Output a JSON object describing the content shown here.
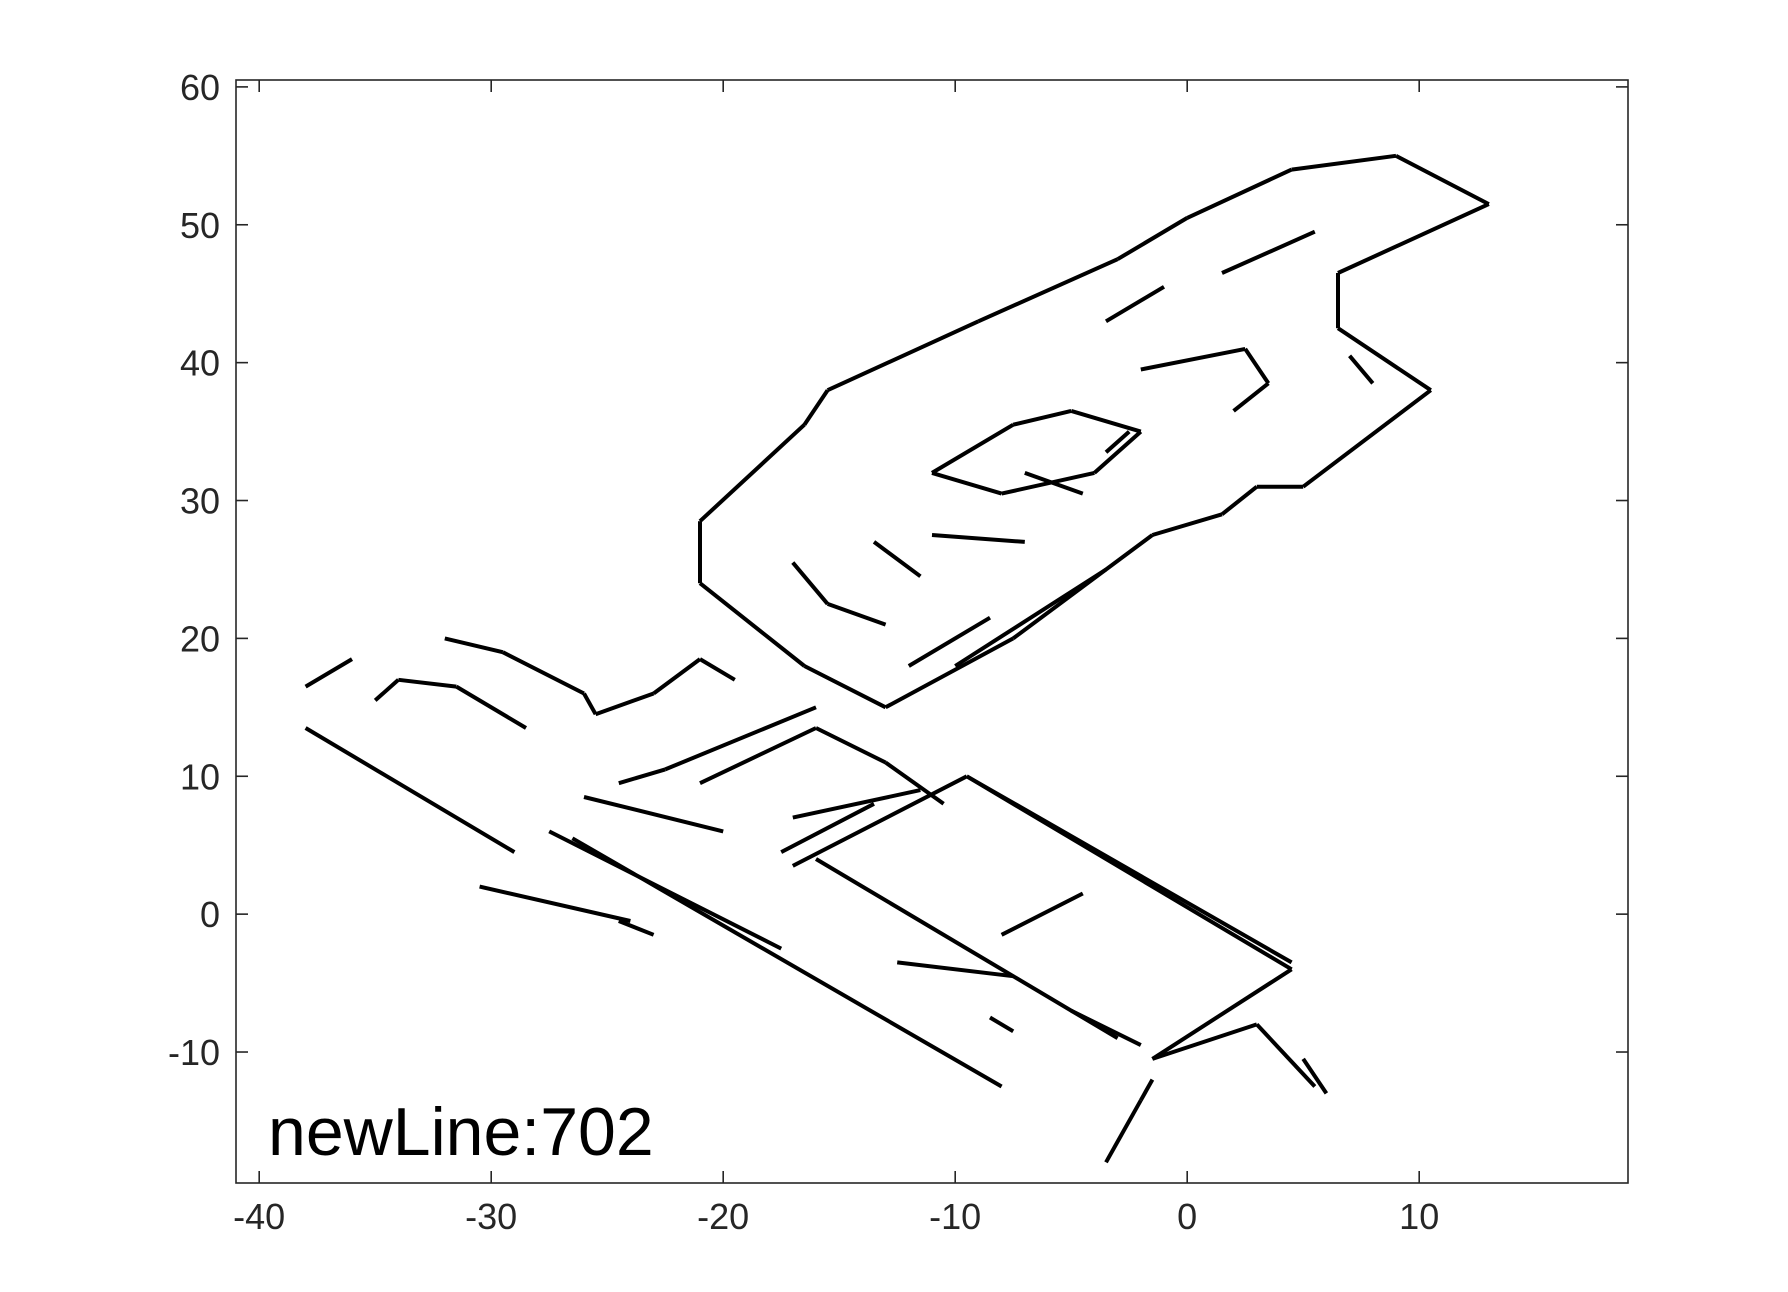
{
  "chart_data": {
    "type": "line",
    "title": "",
    "xlabel": "",
    "ylabel": "",
    "xlim": [
      -41,
      19
    ],
    "ylim": [
      -19.5,
      60.5
    ],
    "grid": false,
    "xticks": [
      -40,
      -30,
      -20,
      -10,
      0,
      10
    ],
    "yticks": [
      -10,
      0,
      10,
      20,
      30,
      40,
      50,
      60
    ],
    "xtick_labels": [
      "-40",
      "-30",
      "-20",
      "-10",
      "0",
      "10"
    ],
    "ytick_labels": [
      "-10",
      "0",
      "10",
      "20",
      "30",
      "40",
      "50",
      "60"
    ],
    "annotation": "newLine:702",
    "line_color": "#000000",
    "segments": [
      [
        [
          -38.0,
          13.5
        ],
        [
          -29.0,
          4.5
        ]
      ],
      [
        [
          -27.5,
          6.0
        ],
        [
          -17.5,
          -2.5
        ]
      ],
      [
        [
          -26.5,
          5.5
        ],
        [
          -8.0,
          -12.5
        ]
      ],
      [
        [
          -30.5,
          2.0
        ],
        [
          -24.0,
          -0.5
        ]
      ],
      [
        [
          -24.5,
          -0.5
        ],
        [
          -23.0,
          -1.5
        ]
      ],
      [
        [
          -38.0,
          16.5
        ],
        [
          -36.0,
          18.5
        ]
      ],
      [
        [
          -35.0,
          15.5
        ],
        [
          -34.0,
          17.0
        ]
      ],
      [
        [
          -34.0,
          17.0
        ],
        [
          -31.5,
          16.5
        ]
      ],
      [
        [
          -31.5,
          16.5
        ],
        [
          -28.5,
          13.5
        ]
      ],
      [
        [
          -32.0,
          20.0
        ],
        [
          -29.5,
          19.0
        ]
      ],
      [
        [
          -29.5,
          19.0
        ],
        [
          -26.0,
          16.0
        ]
      ],
      [
        [
          -26.0,
          16.0
        ],
        [
          -25.5,
          14.5
        ]
      ],
      [
        [
          -25.5,
          14.5
        ],
        [
          -23.0,
          16.0
        ]
      ],
      [
        [
          -23.0,
          16.0
        ],
        [
          -21.0,
          18.5
        ]
      ],
      [
        [
          -21.0,
          18.5
        ],
        [
          -19.5,
          17.0
        ]
      ],
      [
        [
          -26.0,
          8.5
        ],
        [
          -20.0,
          6.0
        ]
      ],
      [
        [
          -24.5,
          9.5
        ],
        [
          -22.5,
          10.5
        ]
      ],
      [
        [
          -22.5,
          10.5
        ],
        [
          -16.0,
          15.0
        ]
      ],
      [
        [
          -21.0,
          9.5
        ],
        [
          -16.0,
          13.5
        ]
      ],
      [
        [
          -16.0,
          13.5
        ],
        [
          -13.0,
          11.0
        ]
      ],
      [
        [
          -13.0,
          11.0
        ],
        [
          -10.5,
          8.0
        ]
      ],
      [
        [
          -17.0,
          7.0
        ],
        [
          -11.5,
          9.0
        ]
      ],
      [
        [
          -17.5,
          4.5
        ],
        [
          -13.5,
          8.0
        ]
      ],
      [
        [
          -17.0,
          3.5
        ],
        [
          -9.5,
          10.0
        ]
      ],
      [
        [
          -9.5,
          10.0
        ],
        [
          4.5,
          -4.0
        ]
      ],
      [
        [
          4.5,
          -4.0
        ],
        [
          -1.5,
          -10.5
        ]
      ],
      [
        [
          -1.5,
          -10.5
        ],
        [
          3.0,
          -8.0
        ]
      ],
      [
        [
          3.0,
          -8.0
        ],
        [
          5.5,
          -12.5
        ]
      ],
      [
        [
          -3.5,
          -18.0
        ],
        [
          -2.0,
          -13.5
        ]
      ],
      [
        [
          -2.0,
          -13.5
        ],
        [
          -1.5,
          -12.0
        ]
      ],
      [
        [
          -9.5,
          10.0
        ],
        [
          4.5,
          -3.5
        ]
      ],
      [
        [
          -16.0,
          4.0
        ],
        [
          -3.0,
          -9.0
        ]
      ],
      [
        [
          -12.5,
          -3.5
        ],
        [
          -7.5,
          -4.5
        ]
      ],
      [
        [
          -8.0,
          -1.5
        ],
        [
          -4.5,
          1.5
        ]
      ],
      [
        [
          -21.0,
          24.0
        ],
        [
          -16.5,
          18.0
        ]
      ],
      [
        [
          -16.5,
          18.0
        ],
        [
          -13.0,
          15.0
        ]
      ],
      [
        [
          -13.0,
          15.0
        ],
        [
          -7.5,
          20.0
        ]
      ],
      [
        [
          -7.5,
          20.0
        ],
        [
          -1.5,
          27.5
        ]
      ],
      [
        [
          -1.5,
          27.5
        ],
        [
          1.5,
          29.0
        ]
      ],
      [
        [
          1.5,
          29.0
        ],
        [
          3.0,
          31.0
        ]
      ],
      [
        [
          3.0,
          31.0
        ],
        [
          5.0,
          31.0
        ]
      ],
      [
        [
          5.0,
          31.0
        ],
        [
          10.5,
          38.0
        ]
      ],
      [
        [
          10.5,
          38.0
        ],
        [
          6.5,
          42.5
        ]
      ],
      [
        [
          6.5,
          42.5
        ],
        [
          6.5,
          46.5
        ]
      ],
      [
        [
          6.5,
          46.5
        ],
        [
          13.0,
          51.5
        ]
      ],
      [
        [
          13.0,
          51.5
        ],
        [
          9.0,
          55.0
        ]
      ],
      [
        [
          9.0,
          55.0
        ],
        [
          4.5,
          54.0
        ]
      ],
      [
        [
          4.5,
          54.0
        ],
        [
          0.0,
          50.5
        ]
      ],
      [
        [
          0.0,
          50.5
        ],
        [
          -3.0,
          47.5
        ]
      ],
      [
        [
          -3.0,
          47.5
        ],
        [
          -9.0,
          43.0
        ]
      ],
      [
        [
          -9.0,
          43.0
        ],
        [
          -15.5,
          38.0
        ]
      ],
      [
        [
          -15.5,
          38.0
        ],
        [
          -16.5,
          35.5
        ]
      ],
      [
        [
          -16.5,
          35.5
        ],
        [
          -21.0,
          28.5
        ]
      ],
      [
        [
          -21.0,
          28.5
        ],
        [
          -21.0,
          24.0
        ]
      ],
      [
        [
          -11.0,
          32.0
        ],
        [
          -7.5,
          35.5
        ]
      ],
      [
        [
          -7.5,
          35.5
        ],
        [
          -5.0,
          36.5
        ]
      ],
      [
        [
          -5.0,
          36.5
        ],
        [
          -2.0,
          35.0
        ]
      ],
      [
        [
          -2.0,
          35.0
        ],
        [
          -4.0,
          32.0
        ]
      ],
      [
        [
          -4.0,
          32.0
        ],
        [
          -8.0,
          30.5
        ]
      ],
      [
        [
          -8.0,
          30.5
        ],
        [
          -11.0,
          32.0
        ]
      ],
      [
        [
          -17.0,
          25.5
        ],
        [
          -15.5,
          22.5
        ]
      ],
      [
        [
          -15.5,
          22.5
        ],
        [
          -13.0,
          21.0
        ]
      ],
      [
        [
          -11.0,
          27.5
        ],
        [
          -7.0,
          27.0
        ]
      ],
      [
        [
          -13.5,
          27.0
        ],
        [
          -11.5,
          24.5
        ]
      ],
      [
        [
          -7.0,
          32.0
        ],
        [
          -4.5,
          30.5
        ]
      ],
      [
        [
          -2.0,
          39.5
        ],
        [
          2.5,
          41.0
        ]
      ],
      [
        [
          2.5,
          41.0
        ],
        [
          3.5,
          38.5
        ]
      ],
      [
        [
          3.5,
          38.5
        ],
        [
          2.0,
          36.5
        ]
      ],
      [
        [
          7.0,
          40.5
        ],
        [
          8.0,
          38.5
        ]
      ],
      [
        [
          -10.0,
          18.0
        ],
        [
          -3.5,
          25.0
        ]
      ],
      [
        [
          -12.0,
          18.0
        ],
        [
          -8.5,
          21.5
        ]
      ],
      [
        [
          -3.5,
          43.0
        ],
        [
          -1.0,
          45.5
        ]
      ],
      [
        [
          1.5,
          46.5
        ],
        [
          5.5,
          49.5
        ]
      ],
      [
        [
          -2.5,
          35.0
        ],
        [
          -3.5,
          33.5
        ]
      ],
      [
        [
          -5.0,
          -7.0
        ],
        [
          -2.0,
          -9.5
        ]
      ],
      [
        [
          -8.5,
          -7.5
        ],
        [
          -7.5,
          -8.5
        ]
      ],
      [
        [
          5.0,
          -10.5
        ],
        [
          6.0,
          -13.0
        ]
      ]
    ]
  }
}
